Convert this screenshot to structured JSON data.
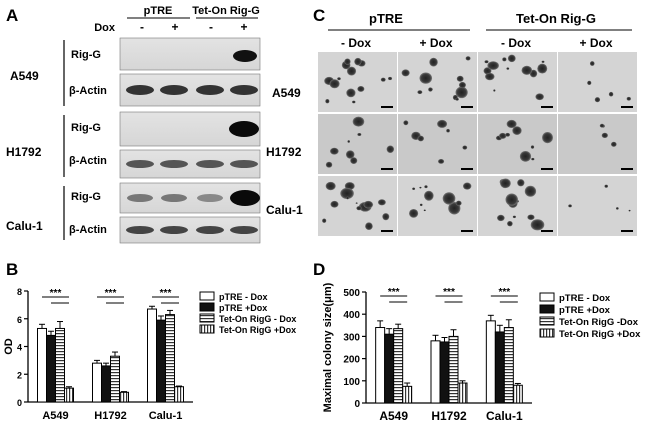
{
  "panels": {
    "A": {
      "letter": "A",
      "groups": [
        "pTRE",
        "Tet-On Rig-G"
      ],
      "dox_label": "Dox",
      "dox_signs": [
        "-",
        "+",
        "-",
        "+"
      ],
      "cell_lines": [
        "A549",
        "H1792",
        "Calu-1"
      ],
      "bands": [
        "Rig-G",
        "β-Actin"
      ]
    },
    "B": {
      "letter": "B"
    },
    "C": {
      "letter": "C",
      "groups": [
        "pTRE",
        "Tet-On Rig-G"
      ],
      "columns": [
        "- Dox",
        "+ Dox",
        "- Dox",
        "+ Dox"
      ],
      "rows": [
        "A549",
        "H1792",
        "Calu-1"
      ]
    },
    "D": {
      "letter": "D"
    }
  },
  "chart_data": [
    {
      "type": "bar",
      "panel": "B",
      "title": "",
      "xlabel": "",
      "ylabel": "OD",
      "ylim": [
        0,
        8
      ],
      "yticks": [
        0,
        2,
        4,
        6,
        8
      ],
      "categories": [
        "A549",
        "H1792",
        "Calu-1"
      ],
      "series": [
        {
          "name": "pTRE - Dox",
          "values": [
            5.3,
            2.8,
            6.7
          ],
          "errors": [
            0.3,
            0.2,
            0.2
          ]
        },
        {
          "name": "pTRE +Dox",
          "values": [
            4.8,
            2.6,
            5.9
          ],
          "errors": [
            0.3,
            0.2,
            0.3
          ]
        },
        {
          "name": "Tet-On RigG - Dox",
          "values": [
            5.3,
            3.3,
            6.3
          ],
          "errors": [
            0.5,
            0.3,
            0.3
          ]
        },
        {
          "name": "Tet-On RigG +Dox",
          "values": [
            1.0,
            0.7,
            1.1
          ],
          "errors": [
            0.1,
            0.05,
            0.05
          ]
        }
      ],
      "significance": [
        "***",
        "***",
        "***"
      ],
      "legend_position": "right"
    },
    {
      "type": "bar",
      "panel": "D",
      "title": "",
      "xlabel": "",
      "ylabel": "Maximal colony size(μm)",
      "ylim": [
        0,
        500
      ],
      "yticks": [
        0,
        100,
        200,
        300,
        400,
        500
      ],
      "categories": [
        "A549",
        "H1792",
        "Calu-1"
      ],
      "series": [
        {
          "name": "pTRE - Dox",
          "values": [
            340,
            280,
            370
          ],
          "errors": [
            30,
            25,
            25
          ]
        },
        {
          "name": "pTRE +Dox",
          "values": [
            310,
            275,
            320
          ],
          "errors": [
            25,
            20,
            30
          ]
        },
        {
          "name": "Tet-On RigG -Dox",
          "values": [
            335,
            300,
            340
          ],
          "errors": [
            20,
            30,
            35
          ]
        },
        {
          "name": "Tet-On RigG +Dox",
          "values": [
            75,
            90,
            80
          ],
          "errors": [
            15,
            10,
            8
          ]
        }
      ],
      "significance": [
        "***",
        "***",
        "***"
      ],
      "legend_position": "right"
    }
  ]
}
